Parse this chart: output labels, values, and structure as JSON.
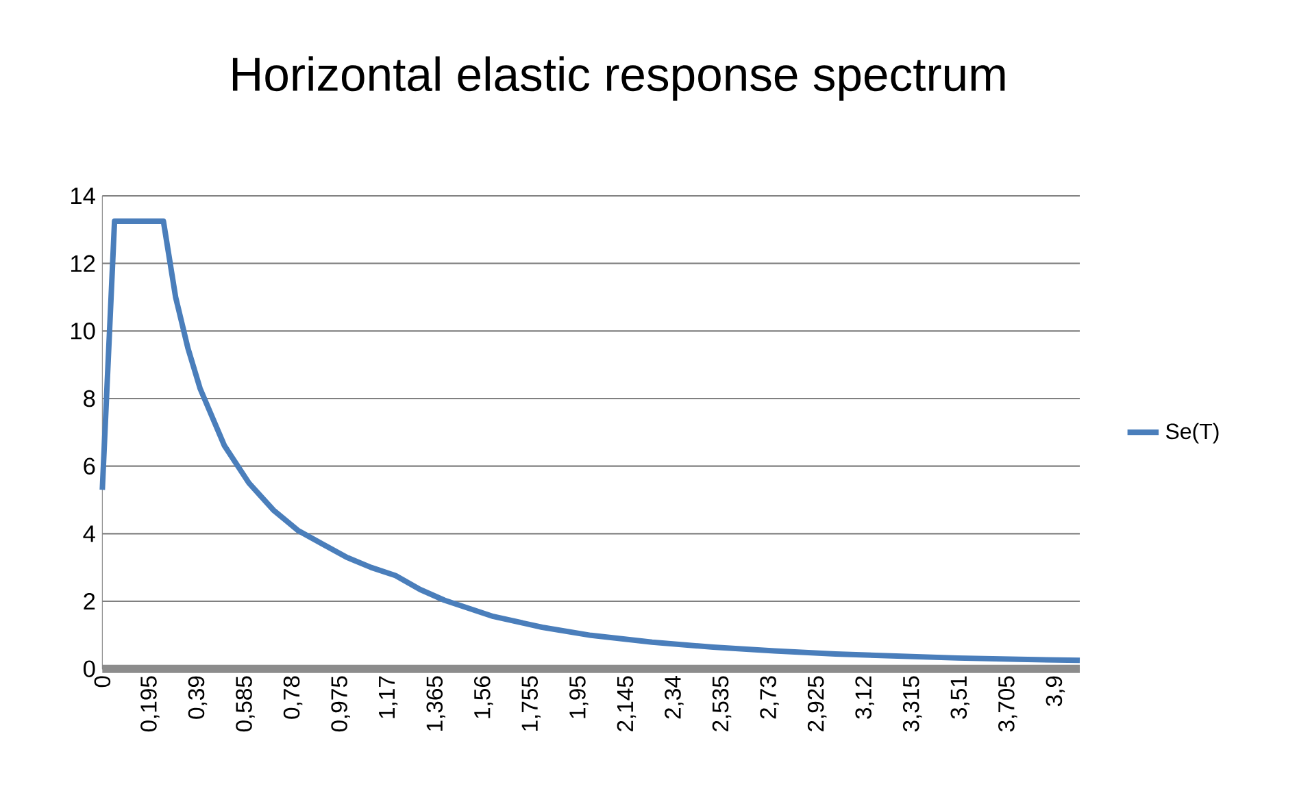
{
  "chart_data": {
    "type": "line",
    "title": "Horizontal elastic response spectrum",
    "x": [
      0,
      0.05,
      0.25,
      0.3,
      0.35,
      0.4,
      0.5,
      0.6,
      0.7,
      0.8,
      0.9,
      1.0,
      1.1,
      1.2,
      1.3,
      1.4,
      1.6,
      1.8,
      2.0,
      2.25,
      2.5,
      2.75,
      3.0,
      3.25,
      3.5,
      3.75,
      4.0
    ],
    "series": [
      {
        "name": "Se(T)",
        "color": "#4a7ebb",
        "values": [
          5.3,
          13.25,
          13.25,
          11.0,
          9.5,
          8.3,
          6.6,
          5.5,
          4.7,
          4.1,
          3.7,
          3.3,
          3.0,
          2.76,
          2.35,
          2.03,
          1.55,
          1.23,
          0.99,
          0.79,
          0.64,
          0.53,
          0.44,
          0.38,
          0.32,
          0.28,
          0.25
        ]
      }
    ],
    "xlim": [
      0,
      4.0
    ],
    "ylim": [
      0,
      14
    ],
    "xticks": [
      0,
      {
        "value": 0.195,
        "label": "0,195"
      },
      {
        "value": 0.39,
        "label": "0,39"
      },
      {
        "value": 0.585,
        "label": "0,585"
      },
      {
        "value": 0.78,
        "label": "0,78"
      },
      {
        "value": 0.975,
        "label": "0,975"
      },
      {
        "value": 1.17,
        "label": "1,17"
      },
      {
        "value": 1.365,
        "label": "1,365"
      },
      {
        "value": 1.56,
        "label": "1,56"
      },
      {
        "value": 1.755,
        "label": "1,755"
      },
      {
        "value": 1.95,
        "label": "1,95"
      },
      {
        "value": 2.145,
        "label": "2,145"
      },
      {
        "value": 2.34,
        "label": "2,34"
      },
      {
        "value": 2.535,
        "label": "2,535"
      },
      {
        "value": 2.73,
        "label": "2,73"
      },
      {
        "value": 2.925,
        "label": "2,925"
      },
      {
        "value": 3.12,
        "label": "3,12"
      },
      {
        "value": 3.315,
        "label": "3,315"
      },
      {
        "value": 3.51,
        "label": "3,51"
      },
      {
        "value": 3.705,
        "label": "3,705"
      },
      {
        "value": 3.9,
        "label": "3,9"
      }
    ],
    "yticks": [
      0,
      2,
      4,
      6,
      8,
      10,
      12,
      14
    ],
    "grid": "y",
    "legend": "right",
    "marker": "none",
    "line_style": "solid"
  }
}
